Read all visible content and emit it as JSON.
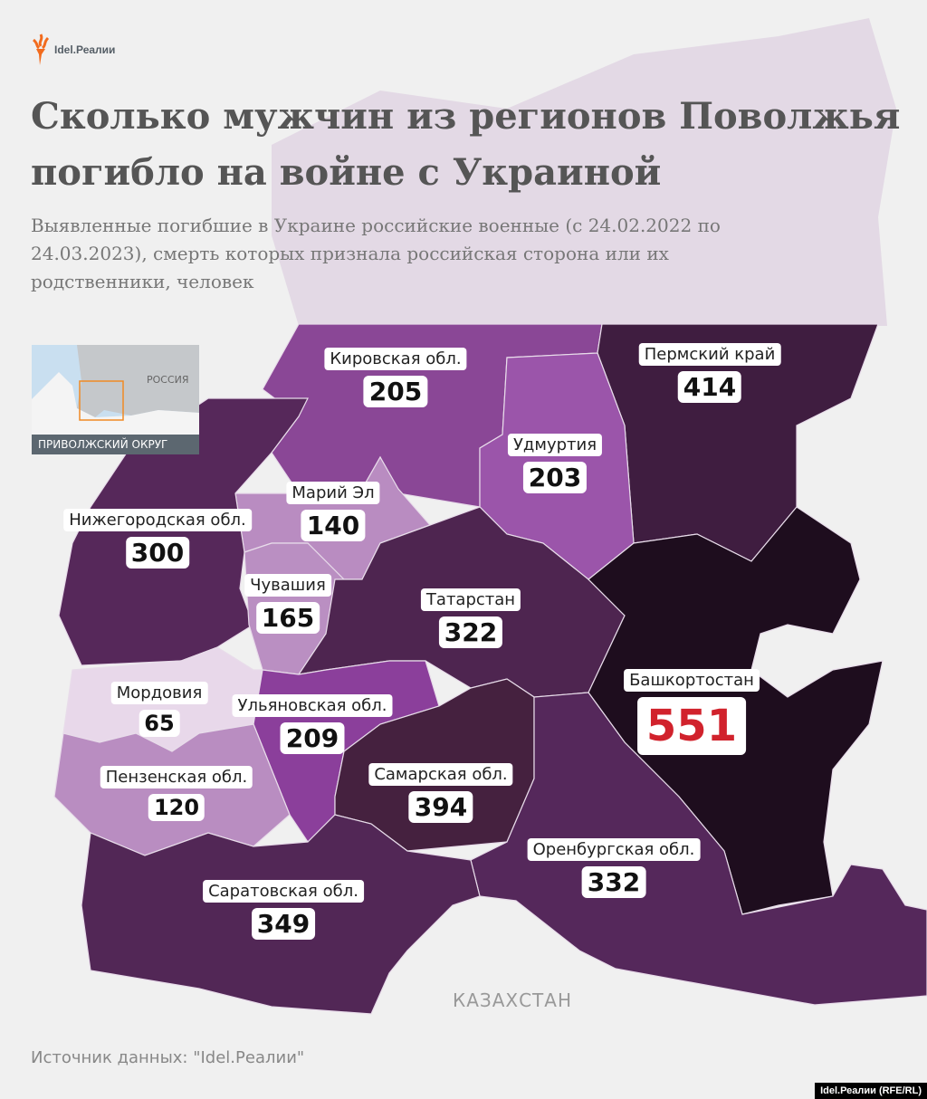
{
  "logo": {
    "text": "Idel.Реалии",
    "brand_color": "#f26b1d"
  },
  "title": "Сколько мужчин из регионов Поволжья погибло на войне с Украиной",
  "subtitle": "Выявленные погибшие в Украине российские военные (с 24.02.2022 по 24.03.2023), смерть которых признала российская сторона или их родственники, человек",
  "inset": {
    "country_label": "РОССИЯ",
    "caption": "ПРИВОЛЖСКИЙ ОКРУГ",
    "highlight_color": "#f08a24"
  },
  "regions": [
    {
      "name": "Кировская обл.",
      "value": "205",
      "color": "#8a4796"
    },
    {
      "name": "Пермский край",
      "value": "414",
      "color": "#3f1d40"
    },
    {
      "name": "Удмуртия",
      "value": "203",
      "color": "#9b55aa"
    },
    {
      "name": "Марий Эл",
      "value": "140",
      "color": "#b98cc1"
    },
    {
      "name": "Нижегородская обл.",
      "value": "300",
      "color": "#56285a"
    },
    {
      "name": "Чувашия",
      "value": "165",
      "color": "#ba8fc2"
    },
    {
      "name": "Татарстан",
      "value": "322",
      "color": "#4e2550"
    },
    {
      "name": "Башкортостан",
      "value": "551",
      "color": "#1e0d1e"
    },
    {
      "name": "Мордовия",
      "value": "65",
      "color": "#e8d8ea"
    },
    {
      "name": "Ульяновская обл.",
      "value": "209",
      "color": "#8b3f9b"
    },
    {
      "name": "Пензенская обл.",
      "value": "120",
      "color": "#b98dc1"
    },
    {
      "name": "Самарская обл.",
      "value": "394",
      "color": "#45213f"
    },
    {
      "name": "Оренбургская обл.",
      "value": "332",
      "color": "#55285b"
    },
    {
      "name": "Саратовская обл.",
      "value": "349",
      "color": "#522756"
    }
  ],
  "neighbor_label": "КАЗАХСТАН",
  "source": "Источник данных: \"Idel.Реалии\"",
  "credit": "Idel.Реалии (RFE/RL)"
}
